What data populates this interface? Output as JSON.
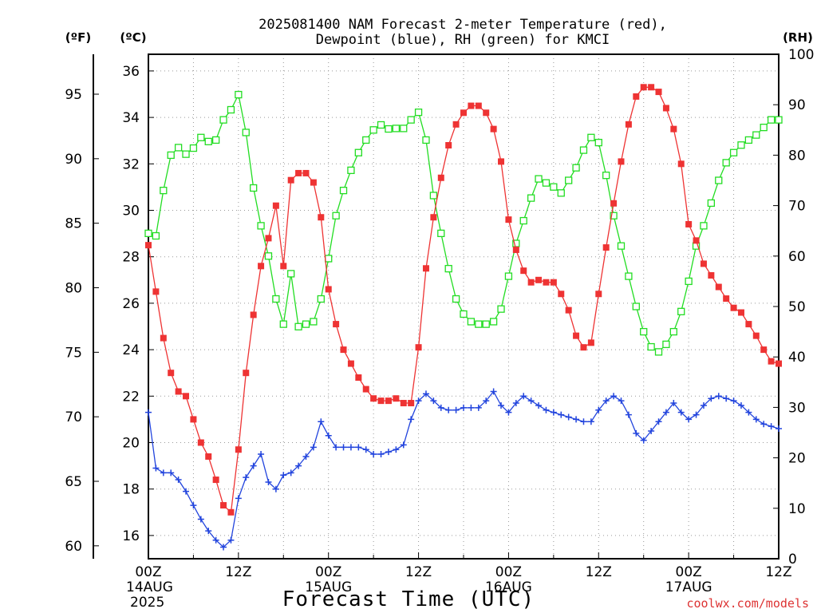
{
  "chart_data": {
    "type": "line",
    "title_line1": "2025081400 NAM Forecast 2-meter Temperature (red),",
    "title_line2": "Dewpoint (blue), RH (green) for KMCI",
    "xlabel": "Forecast Time (UTC)",
    "watermark": "coolwx.com/models",
    "unit_f": "(ºF)",
    "unit_c": "(ºC)",
    "unit_rh": "(RH)",
    "xlim": [
      0,
      84
    ],
    "ylim_c": [
      15,
      36.5
    ],
    "ylim_rh": [
      0,
      100
    ],
    "grid": true,
    "x_ticks": [
      {
        "x": 0,
        "l1": "00Z",
        "l2": "14AUG",
        "l3": "2025"
      },
      {
        "x": 12,
        "l1": "12Z",
        "l2": "",
        "l3": ""
      },
      {
        "x": 24,
        "l1": "00Z",
        "l2": "15AUG",
        "l3": ""
      },
      {
        "x": 36,
        "l1": "12Z",
        "l2": "",
        "l3": ""
      },
      {
        "x": 48,
        "l1": "00Z",
        "l2": "16AUG",
        "l3": ""
      },
      {
        "x": 60,
        "l1": "12Z",
        "l2": "",
        "l3": ""
      },
      {
        "x": 72,
        "l1": "00Z",
        "l2": "17AUG",
        "l3": ""
      },
      {
        "x": 84,
        "l1": "12Z",
        "l2": "",
        "l3": ""
      }
    ],
    "y_ticks_c": [
      16,
      18,
      20,
      22,
      24,
      26,
      28,
      30,
      32,
      34,
      36
    ],
    "y_ticks_f": [
      60,
      65,
      70,
      75,
      80,
      85,
      90,
      95
    ],
    "y_ticks_rh": [
      0,
      10,
      20,
      30,
      40,
      50,
      60,
      70,
      80,
      90,
      100
    ],
    "colors": {
      "temperature": "#ee3333",
      "dewpoint": "#2244dd",
      "rh": "#22dd22",
      "grid": "#999999",
      "watermark": "#dd3333"
    },
    "series": [
      {
        "name": "2-meter Temperature",
        "axis": "c",
        "x": [
          0,
          1,
          2,
          3,
          4,
          5,
          6,
          7,
          8,
          9,
          10,
          11,
          12,
          13,
          14,
          15,
          16,
          17,
          18,
          19,
          20,
          21,
          22,
          23,
          24,
          25,
          26,
          27,
          28,
          29,
          30,
          31,
          32,
          33,
          34,
          35,
          36,
          37,
          38,
          39,
          40,
          41,
          42,
          43,
          44,
          45,
          46,
          47,
          48,
          49,
          50,
          51,
          52,
          53,
          54,
          55,
          56,
          57,
          58,
          59,
          60,
          61,
          62,
          63,
          64,
          65,
          66,
          67,
          68,
          69,
          70,
          71,
          72,
          73,
          74,
          75,
          76,
          77,
          78,
          79,
          80,
          81,
          82,
          83,
          84
        ],
        "values": [
          28.5,
          26.5,
          24.5,
          23,
          22.2,
          22,
          21,
          20,
          19.4,
          18.4,
          17.3,
          17,
          19.7,
          23,
          25.5,
          27.6,
          28.8,
          30.2,
          27.6,
          31.3,
          31.6,
          31.6,
          31.2,
          29.7,
          26.6,
          25.1,
          24,
          23.4,
          22.8,
          22.3,
          21.9,
          21.8,
          21.8,
          21.9,
          21.7,
          21.7,
          24.1,
          27.5,
          29.7,
          31.4,
          32.8,
          33.7,
          34.2,
          34.5,
          34.5,
          34.2,
          33.5,
          32.1,
          29.6,
          28.3,
          27.4,
          26.9,
          27,
          26.9,
          26.9,
          26.4,
          25.7,
          24.6,
          24.1,
          24.3,
          26.4,
          28.4,
          30.3,
          32.1,
          33.7,
          34.9,
          35.3,
          35.3,
          35.1,
          34.4,
          33.5,
          32,
          29.4,
          28.7,
          27.7,
          27.2,
          26.7,
          26.2,
          25.8,
          25.6,
          25.1,
          24.6,
          24,
          23.5,
          23.4
        ]
      },
      {
        "name": "Dewpoint",
        "axis": "c",
        "x": [
          0,
          1,
          2,
          3,
          4,
          5,
          6,
          7,
          8,
          9,
          10,
          11,
          12,
          13,
          14,
          15,
          16,
          17,
          18,
          19,
          20,
          21,
          22,
          23,
          24,
          25,
          26,
          27,
          28,
          29,
          30,
          31,
          32,
          33,
          34,
          35,
          36,
          37,
          38,
          39,
          40,
          41,
          42,
          43,
          44,
          45,
          46,
          47,
          48,
          49,
          50,
          51,
          52,
          53,
          54,
          55,
          56,
          57,
          58,
          59,
          60,
          61,
          62,
          63,
          64,
          65,
          66,
          67,
          68,
          69,
          70,
          71,
          72,
          73,
          74,
          75,
          76,
          77,
          78,
          79,
          80,
          81,
          82,
          83,
          84
        ],
        "values": [
          21.3,
          18.9,
          18.7,
          18.7,
          18.4,
          17.9,
          17.3,
          16.7,
          16.2,
          15.8,
          15.5,
          15.8,
          17.6,
          18.5,
          19,
          19.5,
          18.3,
          18,
          18.6,
          18.7,
          19,
          19.4,
          19.8,
          20.9,
          20.3,
          19.8,
          19.8,
          19.8,
          19.8,
          19.7,
          19.5,
          19.5,
          19.6,
          19.7,
          19.9,
          21,
          21.8,
          22.1,
          21.8,
          21.5,
          21.4,
          21.4,
          21.5,
          21.5,
          21.5,
          21.8,
          22.2,
          21.6,
          21.3,
          21.7,
          22,
          21.8,
          21.6,
          21.4,
          21.3,
          21.2,
          21.1,
          21,
          20.9,
          20.9,
          21.4,
          21.8,
          22,
          21.8,
          21.2,
          20.4,
          20.1,
          20.5,
          20.9,
          21.3,
          21.7,
          21.3,
          21,
          21.2,
          21.6,
          21.9,
          22,
          21.9,
          21.8,
          21.6,
          21.3,
          21,
          20.8,
          20.7,
          20.6
        ]
      },
      {
        "name": "RH",
        "axis": "rh",
        "x": [
          0,
          1,
          2,
          3,
          4,
          5,
          6,
          7,
          8,
          9,
          10,
          11,
          12,
          13,
          14,
          15,
          16,
          17,
          18,
          19,
          20,
          21,
          22,
          23,
          24,
          25,
          26,
          27,
          28,
          29,
          30,
          31,
          32,
          33,
          34,
          35,
          36,
          37,
          38,
          39,
          40,
          41,
          42,
          43,
          44,
          45,
          46,
          47,
          48,
          49,
          50,
          51,
          52,
          53,
          54,
          55,
          56,
          57,
          58,
          59,
          60,
          61,
          62,
          63,
          64,
          65,
          66,
          67,
          68,
          69,
          70,
          71,
          72,
          73,
          74,
          75,
          76,
          77,
          78,
          79,
          80,
          81,
          82,
          83,
          84
        ],
        "values": [
          64.5,
          64,
          73,
          80,
          81.5,
          80.2,
          81.4,
          83.5,
          82.7,
          83,
          87,
          89,
          92,
          84.5,
          73.5,
          66,
          60,
          51.5,
          46.5,
          56.5,
          46,
          46.5,
          47,
          51.5,
          59.5,
          68,
          73,
          77,
          80.5,
          83,
          85,
          86,
          85.2,
          85.3,
          85.3,
          87,
          88.5,
          83,
          72,
          64.5,
          57.5,
          51.5,
          48.5,
          47,
          46.5,
          46.5,
          47,
          49.5,
          56,
          62.5,
          67,
          71.5,
          75.3,
          74.5,
          73.7,
          72.5,
          75,
          77.5,
          81,
          83.5,
          82.5,
          76,
          68,
          62,
          56,
          50,
          45,
          42,
          41,
          42.5,
          45,
          49,
          55,
          62,
          66,
          70.5,
          75,
          78.5,
          80.5,
          82,
          83,
          84,
          85.5,
          87,
          87
        ]
      }
    ]
  }
}
